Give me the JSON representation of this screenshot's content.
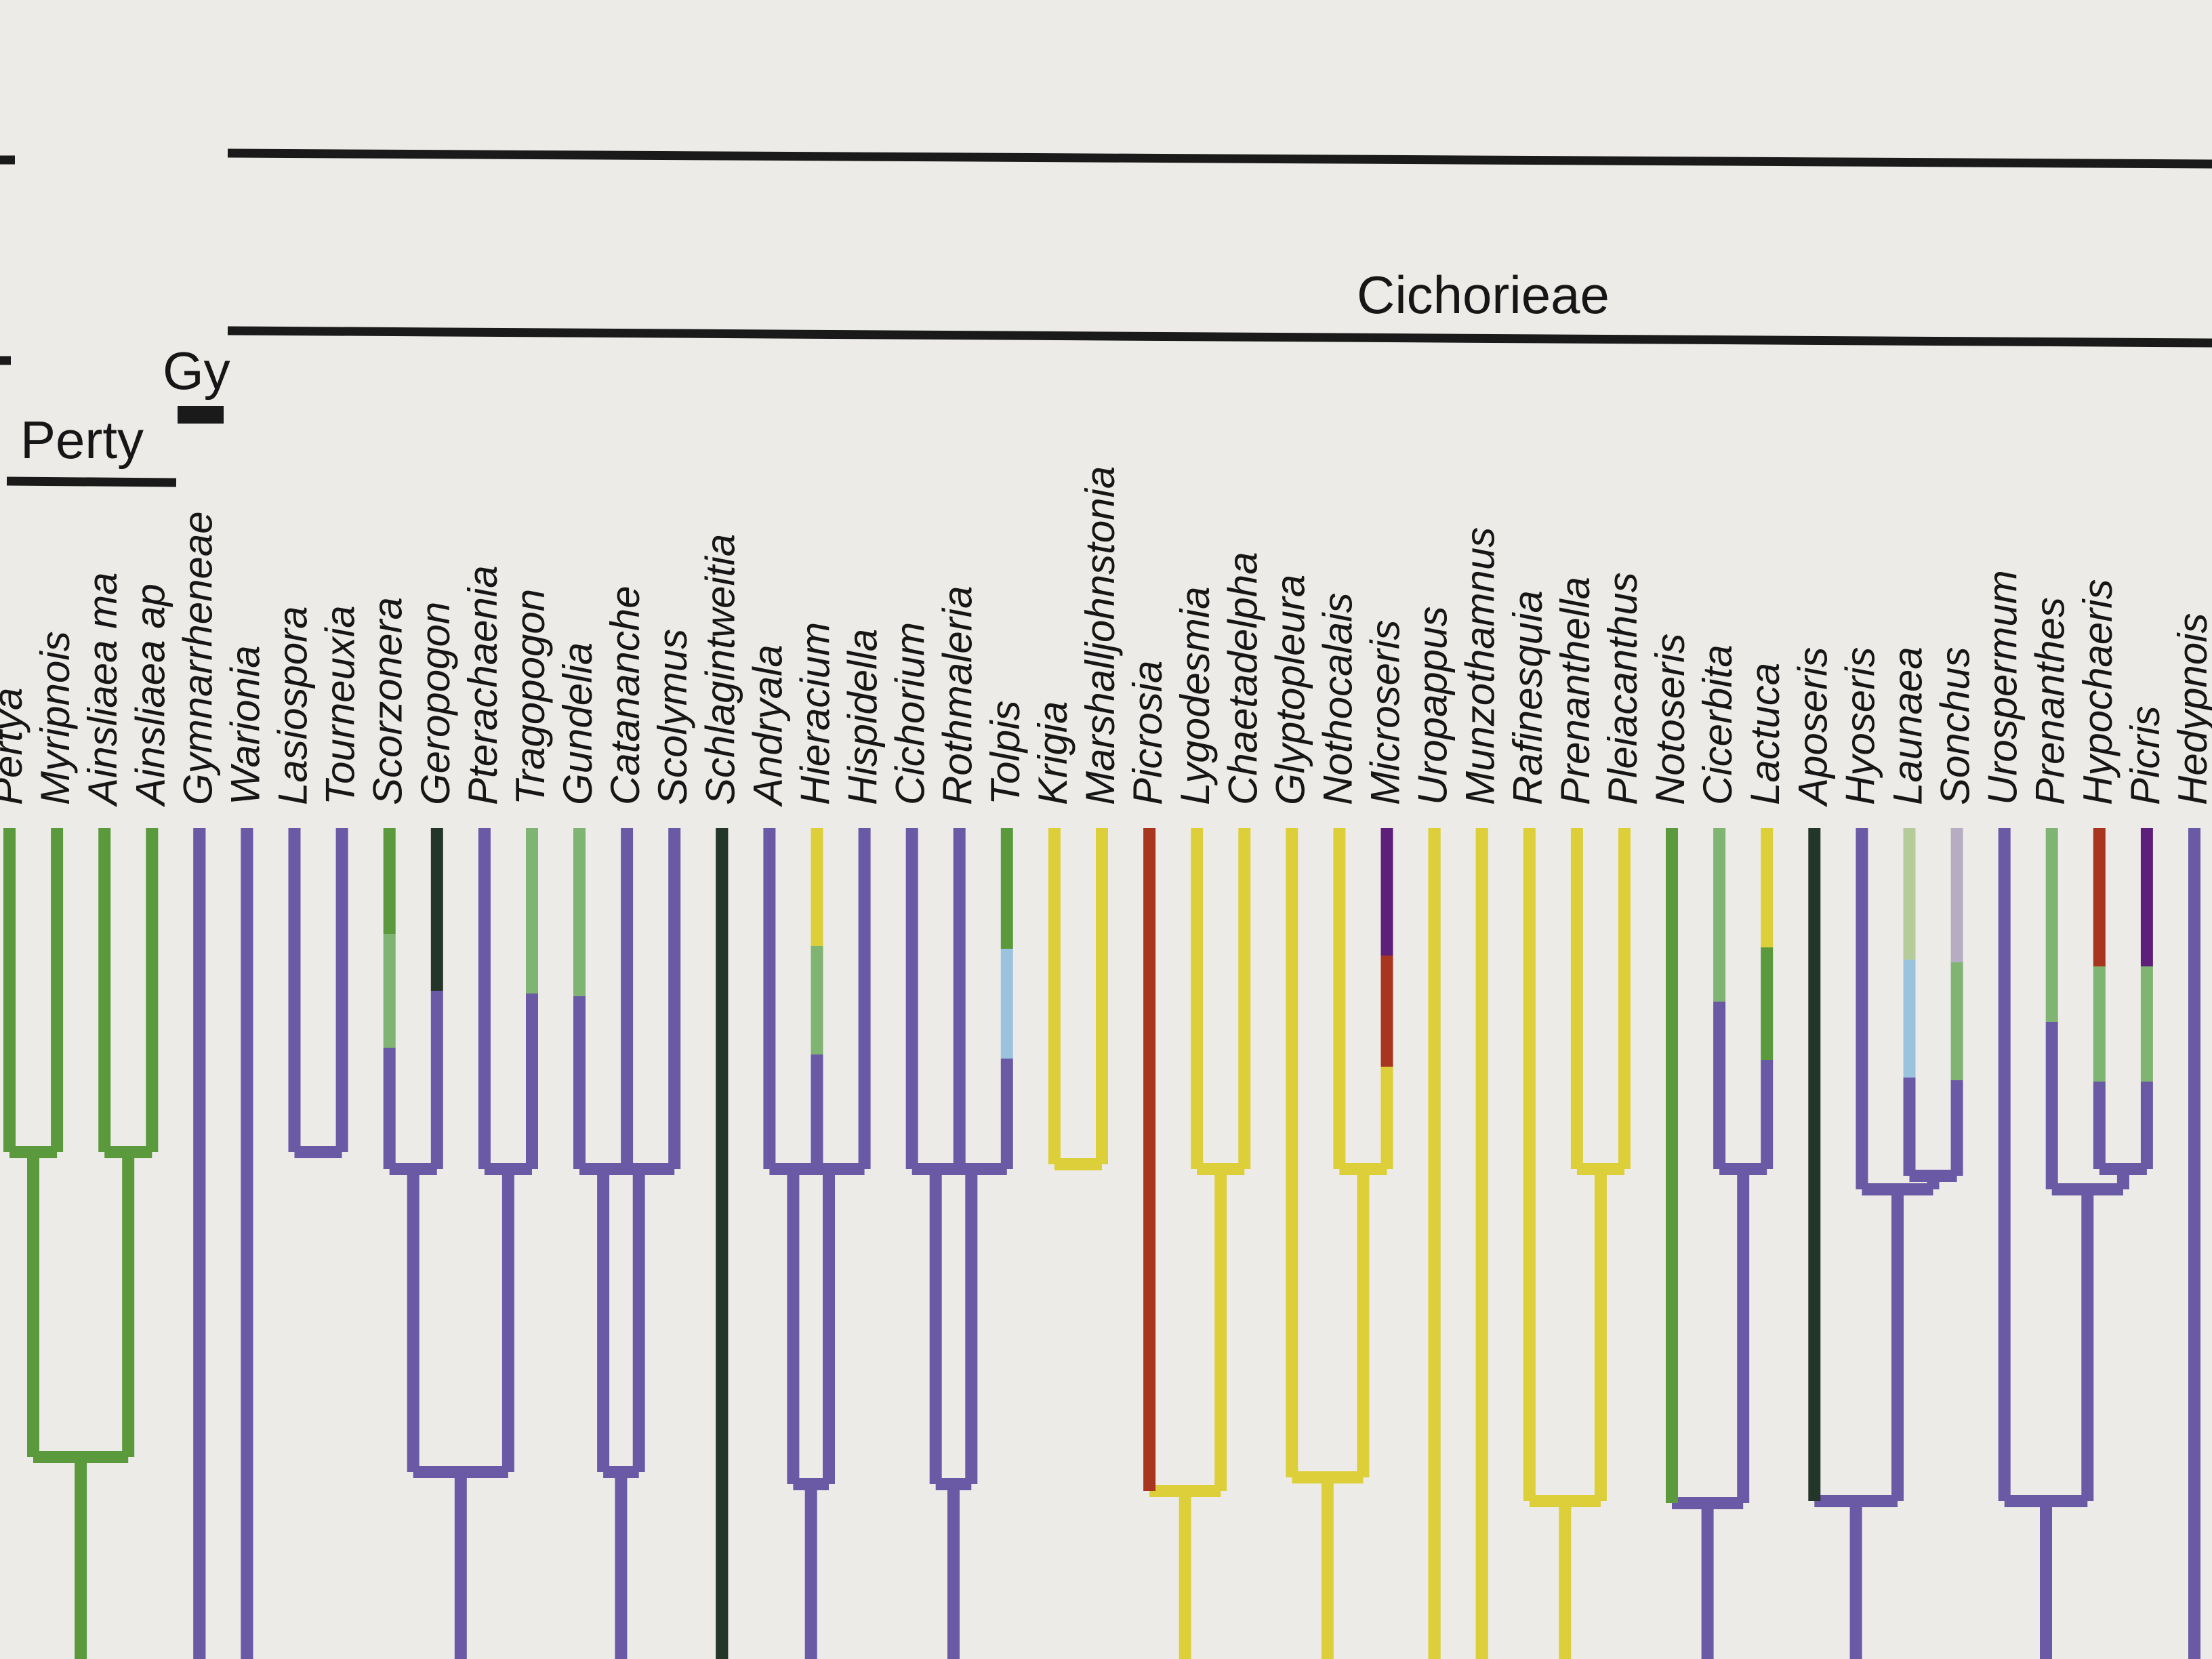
{
  "colors": {
    "green": "#5a9a3c",
    "violet": "#6a5aa6",
    "dark": "#24362a",
    "lightgreen": "#7fb472",
    "yellow": "#dccf3a",
    "red": "#a8361e",
    "purple": "#5e1f7a",
    "lightblue": "#9cc3de",
    "sage": "#b5cc9a",
    "lilac": "#b7adc2"
  },
  "groups": {
    "cichorieae": "Cichorieae",
    "pertyeae": "Perty",
    "gymnarrheneae": "Gy"
  },
  "taxa": [
    {
      "name": "Pertya",
      "segments": [
        "green"
      ]
    },
    {
      "name": "Myripnois",
      "segments": [
        "green"
      ]
    },
    {
      "name": "Ainsliaea ma",
      "segments": [
        "green"
      ]
    },
    {
      "name": "Ainsliaea ap",
      "segments": [
        "green"
      ]
    },
    {
      "name": "Gymnarrheneae",
      "segments": [
        "violet"
      ]
    },
    {
      "name": "Warionia",
      "segments": [
        "violet"
      ]
    },
    {
      "name": "Lasiospora",
      "segments": [
        "violet"
      ]
    },
    {
      "name": "Tourneuxia",
      "segments": [
        "violet"
      ]
    },
    {
      "name": "Scorzonera",
      "segments": [
        "green",
        "lightgreen",
        "violet"
      ]
    },
    {
      "name": "Geropogon",
      "segments": [
        "dark",
        "violet"
      ]
    },
    {
      "name": "Pterachaenia",
      "segments": [
        "violet"
      ]
    },
    {
      "name": "Tragopogon",
      "segments": [
        "lightgreen",
        "violet"
      ]
    },
    {
      "name": "Gundelia",
      "segments": [
        "lightgreen",
        "violet"
      ]
    },
    {
      "name": "Catananche",
      "segments": [
        "violet"
      ]
    },
    {
      "name": "Scolymus",
      "segments": [
        "violet"
      ]
    },
    {
      "name": "Schlagintweitia",
      "segments": [
        "dark"
      ]
    },
    {
      "name": "Andryala",
      "segments": [
        "violet"
      ]
    },
    {
      "name": "Hieracium",
      "segments": [
        "yellow",
        "lightgreen",
        "violet"
      ]
    },
    {
      "name": "Hispidella",
      "segments": [
        "violet"
      ]
    },
    {
      "name": "Cichorium",
      "segments": [
        "violet"
      ]
    },
    {
      "name": "Rothmaleria",
      "segments": [
        "violet"
      ]
    },
    {
      "name": "Tolpis",
      "segments": [
        "green",
        "lightblue",
        "violet"
      ]
    },
    {
      "name": "Krigia",
      "segments": [
        "yellow"
      ]
    },
    {
      "name": "Marshalljohnstonia",
      "segments": [
        "yellow"
      ]
    },
    {
      "name": "Picrosia",
      "segments": [
        "red"
      ]
    },
    {
      "name": "Lygodesmia",
      "segments": [
        "yellow"
      ]
    },
    {
      "name": "Chaetadelpha",
      "segments": [
        "yellow"
      ]
    },
    {
      "name": "Glyptopleura",
      "segments": [
        "yellow"
      ]
    },
    {
      "name": "Nothocalais",
      "segments": [
        "yellow"
      ]
    },
    {
      "name": "Microseris",
      "segments": [
        "purple",
        "red",
        "yellow"
      ]
    },
    {
      "name": "Uropappus",
      "segments": [
        "yellow"
      ]
    },
    {
      "name": "Munzothamnus",
      "segments": [
        "yellow"
      ]
    },
    {
      "name": "Rafinesquia",
      "segments": [
        "yellow"
      ]
    },
    {
      "name": "Prenanthella",
      "segments": [
        "yellow"
      ]
    },
    {
      "name": "Pleiacanthus",
      "segments": [
        "yellow"
      ]
    },
    {
      "name": "Notoseris",
      "segments": [
        "green"
      ]
    },
    {
      "name": "Cicerbita",
      "segments": [
        "lightgreen",
        "violet"
      ]
    },
    {
      "name": "Lactuca",
      "segments": [
        "yellow",
        "green",
        "violet"
      ]
    },
    {
      "name": "Aposeris",
      "segments": [
        "dark"
      ]
    },
    {
      "name": "Hyoseris",
      "segments": [
        "violet"
      ]
    },
    {
      "name": "Launaea",
      "segments": [
        "sage",
        "lightblue",
        "violet"
      ]
    },
    {
      "name": "Sonchus",
      "segments": [
        "lilac",
        "lightgreen",
        "violet"
      ]
    },
    {
      "name": "Urospermum",
      "segments": [
        "violet"
      ]
    },
    {
      "name": "Prenanthes",
      "segments": [
        "lightgreen",
        "violet"
      ]
    },
    {
      "name": "Hypochaeris",
      "segments": [
        "red",
        "lightgreen",
        "violet"
      ]
    },
    {
      "name": "Picris",
      "segments": [
        "purple",
        "lightgreen",
        "violet"
      ]
    },
    {
      "name": "Hedypnois",
      "segments": [
        "violet"
      ]
    }
  ]
}
